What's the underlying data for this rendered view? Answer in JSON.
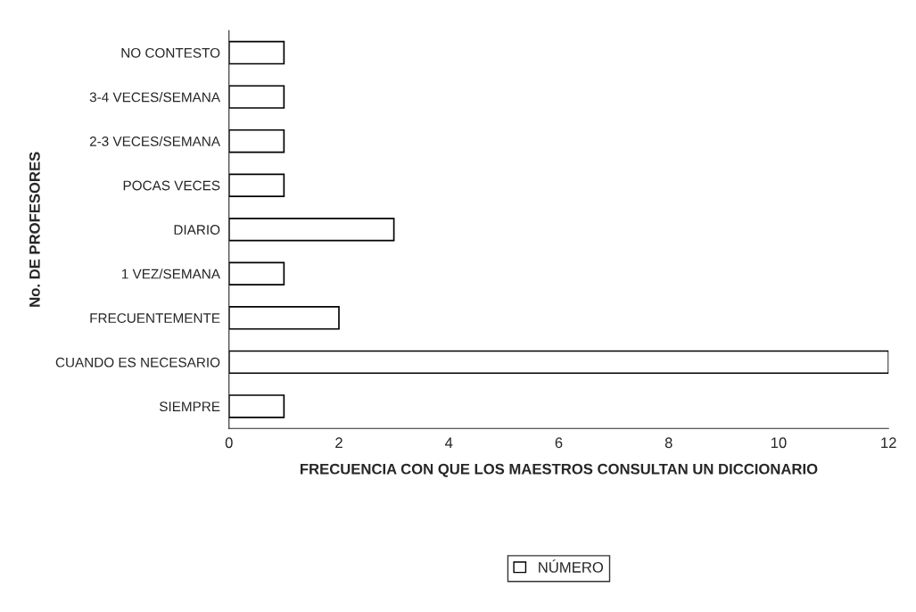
{
  "chart_data": {
    "type": "bar",
    "orientation": "horizontal",
    "xlabel": "FRECUENCIA CON QUE LOS MAESTROS CONSULTAN UN DICCIONARIO",
    "ylabel": "No. DE PROFESORES",
    "categories": [
      "NO CONTESTO",
      "3-4 VECES/SEMANA",
      "2-3 VECES/SEMANA",
      "POCAS VECES",
      "DIARIO",
      "1 VEZ/SEMANA",
      "FRECUENTEMENTE",
      "CUANDO ES NECESARIO",
      "SIEMPRE"
    ],
    "series": [
      {
        "name": "NÚMERO",
        "color": "#ffffff",
        "values": [
          1,
          1,
          1,
          1,
          3,
          1,
          2,
          12,
          1
        ]
      }
    ],
    "xlim": [
      0,
      12
    ],
    "xticks": [
      0,
      2,
      4,
      6,
      8,
      10,
      12
    ],
    "grid": false,
    "legend": "bottom"
  }
}
